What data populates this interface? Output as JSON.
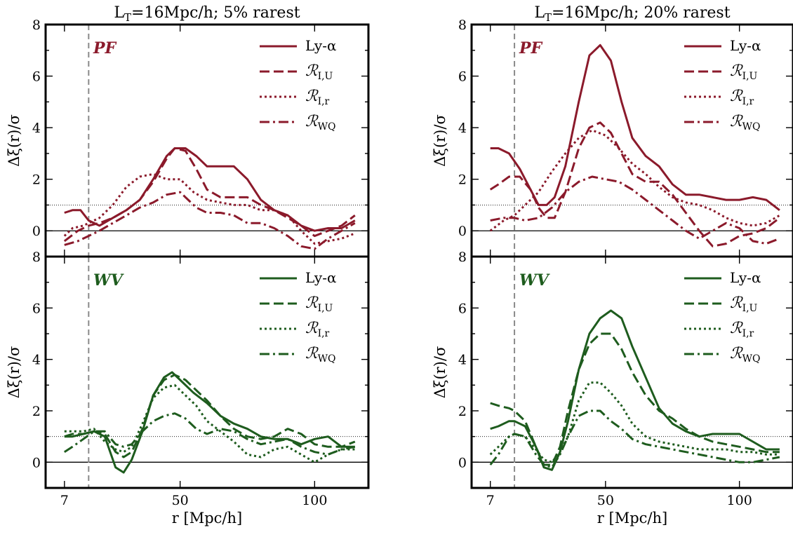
{
  "colors": {
    "pf": "#8b1a2b",
    "wv": "#1e5c1e",
    "vline": "#8a8a8a"
  },
  "chart_data": [
    {
      "type": "line",
      "title": "L_T=16Mpc/h; 5% rarest",
      "panel_label": "PF",
      "ylabel": "Δξ(r)/σ",
      "xlabel": "",
      "xlim": [
        0,
        120
      ],
      "ylim": [
        -1,
        8
      ],
      "yticks": [
        0,
        2,
        4,
        6,
        8
      ],
      "xticks": [],
      "xticklabels": [],
      "hlines": [
        0,
        1
      ],
      "vline": 16,
      "legend": "top-right",
      "series": [
        {
          "name": "Ly-α",
          "style": "solid",
          "x": [
            7,
            10,
            13,
            16,
            20,
            25,
            30,
            35,
            40,
            45,
            48,
            52,
            56,
            60,
            65,
            70,
            75,
            80,
            85,
            90,
            95,
            100,
            105,
            110,
            115
          ],
          "y": [
            0.7,
            0.8,
            0.8,
            0.4,
            0.2,
            0.5,
            0.8,
            1.2,
            2.0,
            2.9,
            3.2,
            3.2,
            2.9,
            2.5,
            2.5,
            2.5,
            2.0,
            1.2,
            0.8,
            0.6,
            0.2,
            0.0,
            0.1,
            0.1,
            0.4
          ]
        },
        {
          "name": "R_I,U",
          "style": "dashed",
          "x": [
            7,
            12,
            16,
            20,
            25,
            30,
            35,
            40,
            45,
            48,
            52,
            56,
            60,
            65,
            70,
            75,
            80,
            85,
            90,
            95,
            100,
            105,
            110,
            115
          ],
          "y": [
            -0.4,
            0.0,
            0.2,
            0.3,
            0.5,
            0.8,
            1.2,
            1.9,
            2.8,
            3.2,
            3.1,
            2.4,
            1.6,
            1.3,
            1.3,
            1.3,
            1.0,
            0.8,
            0.5,
            0.2,
            -0.2,
            0.0,
            0.2,
            0.6
          ]
        },
        {
          "name": "R_I,r",
          "style": "dotted",
          "x": [
            7,
            10,
            14,
            16,
            20,
            25,
            30,
            35,
            40,
            45,
            50,
            55,
            60,
            65,
            70,
            75,
            80,
            85,
            90,
            95,
            100,
            105,
            110,
            115
          ],
          "y": [
            -0.2,
            0.1,
            0.2,
            0.3,
            0.5,
            1.0,
            1.7,
            2.1,
            2.2,
            2.0,
            2.0,
            1.5,
            1.2,
            1.1,
            1.0,
            1.0,
            0.8,
            0.8,
            0.6,
            0.0,
            -0.5,
            -0.4,
            -0.3,
            -0.1
          ]
        },
        {
          "name": "R_WQ",
          "style": "dashdot",
          "x": [
            7,
            12,
            16,
            20,
            25,
            30,
            35,
            40,
            45,
            50,
            52,
            56,
            60,
            65,
            70,
            75,
            80,
            85,
            90,
            95,
            100,
            105,
            110,
            115
          ],
          "y": [
            -0.55,
            -0.4,
            -0.2,
            0.0,
            0.3,
            0.6,
            0.9,
            1.1,
            1.4,
            1.5,
            1.3,
            0.9,
            0.7,
            0.7,
            0.6,
            0.3,
            0.3,
            0.1,
            -0.2,
            -0.6,
            -0.7,
            -0.3,
            0.0,
            0.3
          ]
        }
      ]
    },
    {
      "type": "line",
      "title": "L_T=16Mpc/h; 20% rarest",
      "panel_label": "PF",
      "ylabel": "Δξ(r)/σ",
      "xlabel": "",
      "xlim": [
        0,
        120
      ],
      "ylim": [
        -1,
        8
      ],
      "yticks": [
        0,
        2,
        4,
        6,
        8
      ],
      "xticks": [],
      "xticklabels": [],
      "hlines": [
        0,
        1
      ],
      "vline": 16,
      "legend": "top-right",
      "series": [
        {
          "name": "Ly-α",
          "style": "solid",
          "x": [
            7,
            10,
            14,
            18,
            22,
            25,
            28,
            31,
            35,
            40,
            44,
            48,
            52,
            56,
            60,
            65,
            70,
            75,
            80,
            85,
            90,
            95,
            100,
            105,
            110,
            115
          ],
          "y": [
            3.2,
            3.2,
            3.0,
            2.4,
            1.6,
            1.0,
            1.0,
            1.3,
            2.5,
            5.0,
            6.8,
            7.2,
            6.6,
            5.0,
            3.6,
            2.9,
            2.5,
            1.8,
            1.4,
            1.4,
            1.3,
            1.2,
            1.2,
            1.3,
            1.2,
            0.8
          ]
        },
        {
          "name": "R_I,U",
          "style": "dashed",
          "x": [
            7,
            10,
            14,
            18,
            22,
            25,
            28,
            31,
            35,
            40,
            44,
            48,
            52,
            56,
            60,
            65,
            70,
            75,
            80,
            85,
            90,
            95,
            100,
            105,
            110,
            115
          ],
          "y": [
            1.6,
            1.8,
            2.1,
            2.1,
            1.6,
            0.9,
            0.5,
            0.5,
            1.5,
            3.2,
            4.0,
            4.2,
            3.8,
            3.0,
            2.2,
            1.9,
            1.9,
            1.4,
            0.7,
            0.0,
            -0.6,
            -0.5,
            -0.2,
            -0.1,
            0.1,
            0.5
          ]
        },
        {
          "name": "R_I,r",
          "style": "dotted",
          "x": [
            7,
            12,
            16,
            20,
            25,
            30,
            35,
            40,
            45,
            50,
            55,
            60,
            65,
            70,
            75,
            80,
            85,
            90,
            95,
            100,
            105,
            110,
            115
          ],
          "y": [
            0.0,
            0.4,
            0.6,
            1.0,
            1.5,
            2.3,
            3.0,
            3.6,
            3.9,
            3.7,
            3.2,
            2.6,
            2.2,
            1.7,
            1.3,
            1.1,
            1.0,
            0.8,
            0.5,
            0.3,
            0.2,
            0.3,
            0.6
          ]
        },
        {
          "name": "R_WQ",
          "style": "dashdot",
          "x": [
            7,
            12,
            16,
            20,
            25,
            30,
            35,
            40,
            45,
            50,
            55,
            60,
            65,
            70,
            75,
            80,
            85,
            90,
            95,
            100,
            105,
            110,
            115
          ],
          "y": [
            0.4,
            0.5,
            0.5,
            0.4,
            0.5,
            0.9,
            1.5,
            1.9,
            2.1,
            2.0,
            1.9,
            1.6,
            1.2,
            0.8,
            0.4,
            0.0,
            -0.3,
            0.0,
            0.3,
            0.1,
            -0.4,
            -0.5,
            -0.3
          ]
        }
      ]
    },
    {
      "type": "line",
      "title": "",
      "panel_label": "WV",
      "ylabel": "Δξ(r)/σ",
      "xlabel": "r [Mpc/h]",
      "xlim": [
        0,
        120
      ],
      "ylim": [
        -1,
        8
      ],
      "yticks": [
        0,
        2,
        4,
        6,
        8
      ],
      "xticks": [
        7,
        50,
        100
      ],
      "xticklabels": [
        "7",
        "50",
        "100"
      ],
      "hlines": [
        0,
        1
      ],
      "vline": 16,
      "legend": "top-right",
      "series": [
        {
          "name": "Ly-α",
          "style": "solid",
          "x": [
            7,
            10,
            14,
            18,
            22,
            26,
            29,
            32,
            36,
            40,
            44,
            47,
            50,
            55,
            60,
            65,
            70,
            75,
            80,
            85,
            90,
            95,
            100,
            105,
            110,
            115
          ],
          "y": [
            1.0,
            1.0,
            1.1,
            1.2,
            1.0,
            -0.2,
            -0.4,
            0.1,
            1.2,
            2.6,
            3.3,
            3.5,
            3.2,
            2.7,
            2.3,
            1.8,
            1.5,
            1.3,
            1.0,
            0.9,
            0.9,
            0.7,
            0.9,
            1.0,
            0.6,
            0.6
          ]
        },
        {
          "name": "R_I,U",
          "style": "dashed",
          "x": [
            7,
            10,
            14,
            18,
            22,
            26,
            29,
            32,
            36,
            40,
            44,
            48,
            52,
            56,
            60,
            65,
            70,
            75,
            80,
            85,
            90,
            95,
            100,
            105,
            110,
            115
          ],
          "y": [
            1.0,
            1.1,
            1.1,
            1.2,
            1.1,
            0.4,
            0.2,
            0.4,
            1.3,
            2.6,
            3.2,
            3.4,
            3.2,
            2.8,
            2.4,
            1.8,
            1.3,
            1.0,
            0.9,
            1.0,
            1.3,
            1.1,
            0.7,
            0.6,
            0.6,
            0.8
          ]
        },
        {
          "name": "R_I,r",
          "style": "dotted",
          "x": [
            7,
            10,
            14,
            18,
            22,
            26,
            29,
            32,
            36,
            40,
            44,
            48,
            52,
            56,
            60,
            65,
            70,
            75,
            80,
            85,
            90,
            95,
            100,
            105,
            110,
            115
          ],
          "y": [
            1.2,
            1.2,
            1.2,
            1.3,
            0.8,
            0.5,
            0.4,
            0.6,
            1.5,
            2.5,
            2.9,
            3.0,
            2.6,
            2.2,
            1.6,
            1.2,
            0.8,
            0.3,
            0.2,
            0.5,
            0.6,
            0.3,
            0.0,
            0.3,
            0.5,
            0.5
          ]
        },
        {
          "name": "R_WQ",
          "style": "dashdot",
          "x": [
            7,
            10,
            14,
            18,
            22,
            26,
            29,
            32,
            36,
            40,
            44,
            48,
            52,
            56,
            60,
            65,
            70,
            75,
            80,
            85,
            90,
            95,
            100,
            105,
            110,
            115
          ],
          "y": [
            0.4,
            0.6,
            0.9,
            1.2,
            1.2,
            0.7,
            0.6,
            0.7,
            1.2,
            1.6,
            1.8,
            1.9,
            1.7,
            1.3,
            1.1,
            1.3,
            1.2,
            0.9,
            0.7,
            0.8,
            0.9,
            0.6,
            0.4,
            0.3,
            0.5,
            0.6
          ]
        }
      ]
    },
    {
      "type": "line",
      "title": "",
      "panel_label": "WV",
      "ylabel": "Δξ(r)/σ",
      "xlabel": "r [Mpc/h]",
      "xlim": [
        0,
        120
      ],
      "ylim": [
        -1,
        8
      ],
      "yticks": [
        0,
        2,
        4,
        6,
        8
      ],
      "xticks": [
        7,
        50,
        100
      ],
      "xticklabels": [
        "7",
        "50",
        "100"
      ],
      "hlines": [
        0,
        1
      ],
      "vline": 16,
      "legend": "top-right",
      "series": [
        {
          "name": "Ly-α",
          "style": "solid",
          "x": [
            7,
            10,
            14,
            16,
            20,
            24,
            27,
            30,
            33,
            36,
            40,
            44,
            48,
            52,
            56,
            60,
            65,
            70,
            75,
            80,
            85,
            90,
            95,
            100,
            105,
            110,
            115
          ],
          "y": [
            1.3,
            1.4,
            1.6,
            1.6,
            1.4,
            0.6,
            -0.2,
            -0.3,
            0.4,
            1.6,
            3.6,
            5.0,
            5.6,
            5.9,
            5.6,
            4.5,
            3.3,
            2.1,
            1.5,
            1.2,
            1.0,
            1.1,
            1.1,
            1.1,
            0.8,
            0.5,
            0.5
          ]
        },
        {
          "name": "R_I,U",
          "style": "dashed",
          "x": [
            7,
            10,
            14,
            16,
            20,
            24,
            27,
            30,
            33,
            36,
            40,
            44,
            48,
            52,
            56,
            60,
            65,
            70,
            75,
            80,
            85,
            90,
            95,
            100,
            105,
            110,
            115
          ],
          "y": [
            2.3,
            2.2,
            2.1,
            2.0,
            1.6,
            0.6,
            -0.1,
            -0.1,
            0.6,
            2.0,
            3.6,
            4.6,
            5.0,
            5.0,
            4.4,
            3.5,
            2.6,
            2.0,
            1.7,
            1.3,
            1.0,
            0.8,
            0.7,
            0.6,
            0.5,
            0.4,
            0.4
          ]
        },
        {
          "name": "R_I,r",
          "style": "dotted",
          "x": [
            7,
            10,
            14,
            16,
            20,
            24,
            27,
            30,
            33,
            36,
            40,
            44,
            48,
            52,
            56,
            60,
            65,
            70,
            75,
            80,
            85,
            90,
            95,
            100,
            105,
            110,
            115
          ],
          "y": [
            0.3,
            0.6,
            1.0,
            1.1,
            1.0,
            0.5,
            0.1,
            0.0,
            0.4,
            1.0,
            2.4,
            3.1,
            3.1,
            2.7,
            2.2,
            1.5,
            1.0,
            0.8,
            0.7,
            0.6,
            0.5,
            0.5,
            0.5,
            0.4,
            0.4,
            0.3,
            0.3
          ]
        },
        {
          "name": "R_WQ",
          "style": "dashdot",
          "x": [
            7,
            10,
            14,
            16,
            20,
            24,
            27,
            30,
            33,
            36,
            40,
            44,
            48,
            52,
            56,
            60,
            65,
            70,
            75,
            80,
            85,
            90,
            95,
            100,
            105,
            110,
            115
          ],
          "y": [
            -0.1,
            0.3,
            1.0,
            1.1,
            1.0,
            0.3,
            -0.1,
            -0.2,
            0.3,
            1.0,
            1.8,
            2.0,
            2.0,
            1.6,
            1.3,
            0.9,
            0.7,
            0.6,
            0.5,
            0.4,
            0.3,
            0.2,
            0.1,
            0.0,
            0.0,
            0.1,
            0.2
          ]
        }
      ]
    }
  ]
}
